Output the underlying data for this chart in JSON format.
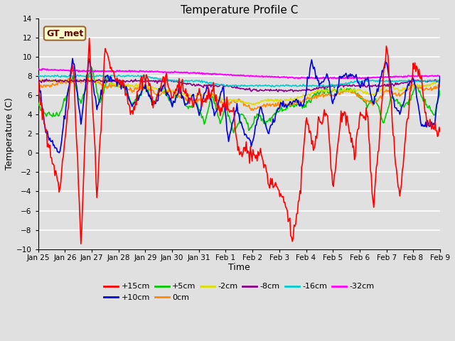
{
  "title": "Temperature Profile C",
  "xlabel": "Time",
  "ylabel": "Temperature (C)",
  "ylim": [
    -10,
    14
  ],
  "yticks": [
    -10,
    -8,
    -6,
    -4,
    -2,
    0,
    2,
    4,
    6,
    8,
    10,
    12,
    14
  ],
  "x_labels": [
    "Jan 25",
    "Jan 26",
    "Jan 27",
    "Jan 28",
    "Jan 29",
    "Jan 30",
    "Jan 31",
    "Feb 1",
    "Feb 2",
    "Feb 3",
    "Feb 4",
    "Feb 5",
    "Feb 6",
    "Feb 7",
    "Feb 8",
    "Feb 9"
  ],
  "series": {
    "+15cm": {
      "color": "#ff0000",
      "lw": 1.2
    },
    "+10cm": {
      "color": "#0000dd",
      "lw": 1.2
    },
    "+5cm": {
      "color": "#00cc00",
      "lw": 1.2
    },
    "0cm": {
      "color": "#ff8800",
      "lw": 1.2
    },
    "-2cm": {
      "color": "#dddd00",
      "lw": 1.2
    },
    "-8cm": {
      "color": "#880088",
      "lw": 1.2
    },
    "-16cm": {
      "color": "#00cccc",
      "lw": 1.2
    },
    "-32cm": {
      "color": "#ff00ff",
      "lw": 1.5
    }
  },
  "annotation_box": {
    "text": "GT_met",
    "fontsize": 9,
    "facecolor": "#ffffcc",
    "edgecolor": "#996633",
    "textcolor": "#660000"
  },
  "bg_color": "#e0e0e0",
  "grid_color": "#ffffff",
  "n_points": 480
}
